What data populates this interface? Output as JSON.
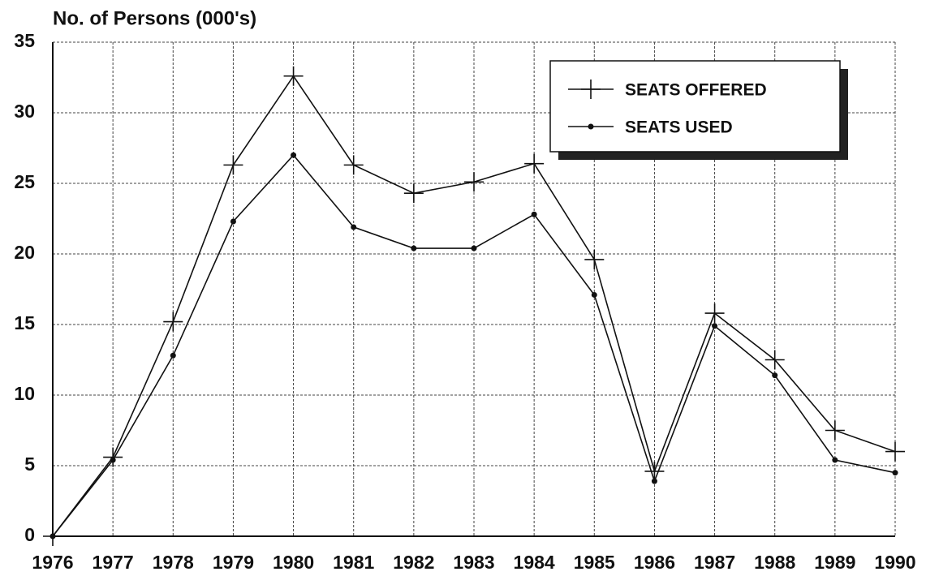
{
  "chart_data": {
    "type": "line",
    "y_axis_label": "No. of Persons (000's)",
    "categories": [
      "1976",
      "1977",
      "1978",
      "1979",
      "1980",
      "1981",
      "1982",
      "1983",
      "1984",
      "1985",
      "1986",
      "1987",
      "1988",
      "1989",
      "1990"
    ],
    "series": [
      {
        "name": "SEATS OFFERED",
        "color": "#111111",
        "marker": "plus",
        "values": [
          0,
          5.6,
          15.2,
          26.3,
          32.6,
          26.3,
          24.3,
          25.1,
          26.4,
          19.6,
          4.6,
          15.8,
          12.5,
          7.5,
          6.0
        ]
      },
      {
        "name": "SEATS USED",
        "color": "#111111",
        "marker": "dot",
        "values": [
          0,
          5.4,
          12.8,
          22.3,
          27.0,
          21.9,
          20.4,
          20.4,
          22.8,
          17.1,
          3.9,
          14.9,
          11.4,
          5.4,
          4.5
        ]
      }
    ],
    "ylim": [
      0,
      35
    ],
    "yticks": [
      0,
      5,
      10,
      15,
      20,
      25,
      30,
      35
    ],
    "grid": true,
    "legend": "upper right"
  }
}
